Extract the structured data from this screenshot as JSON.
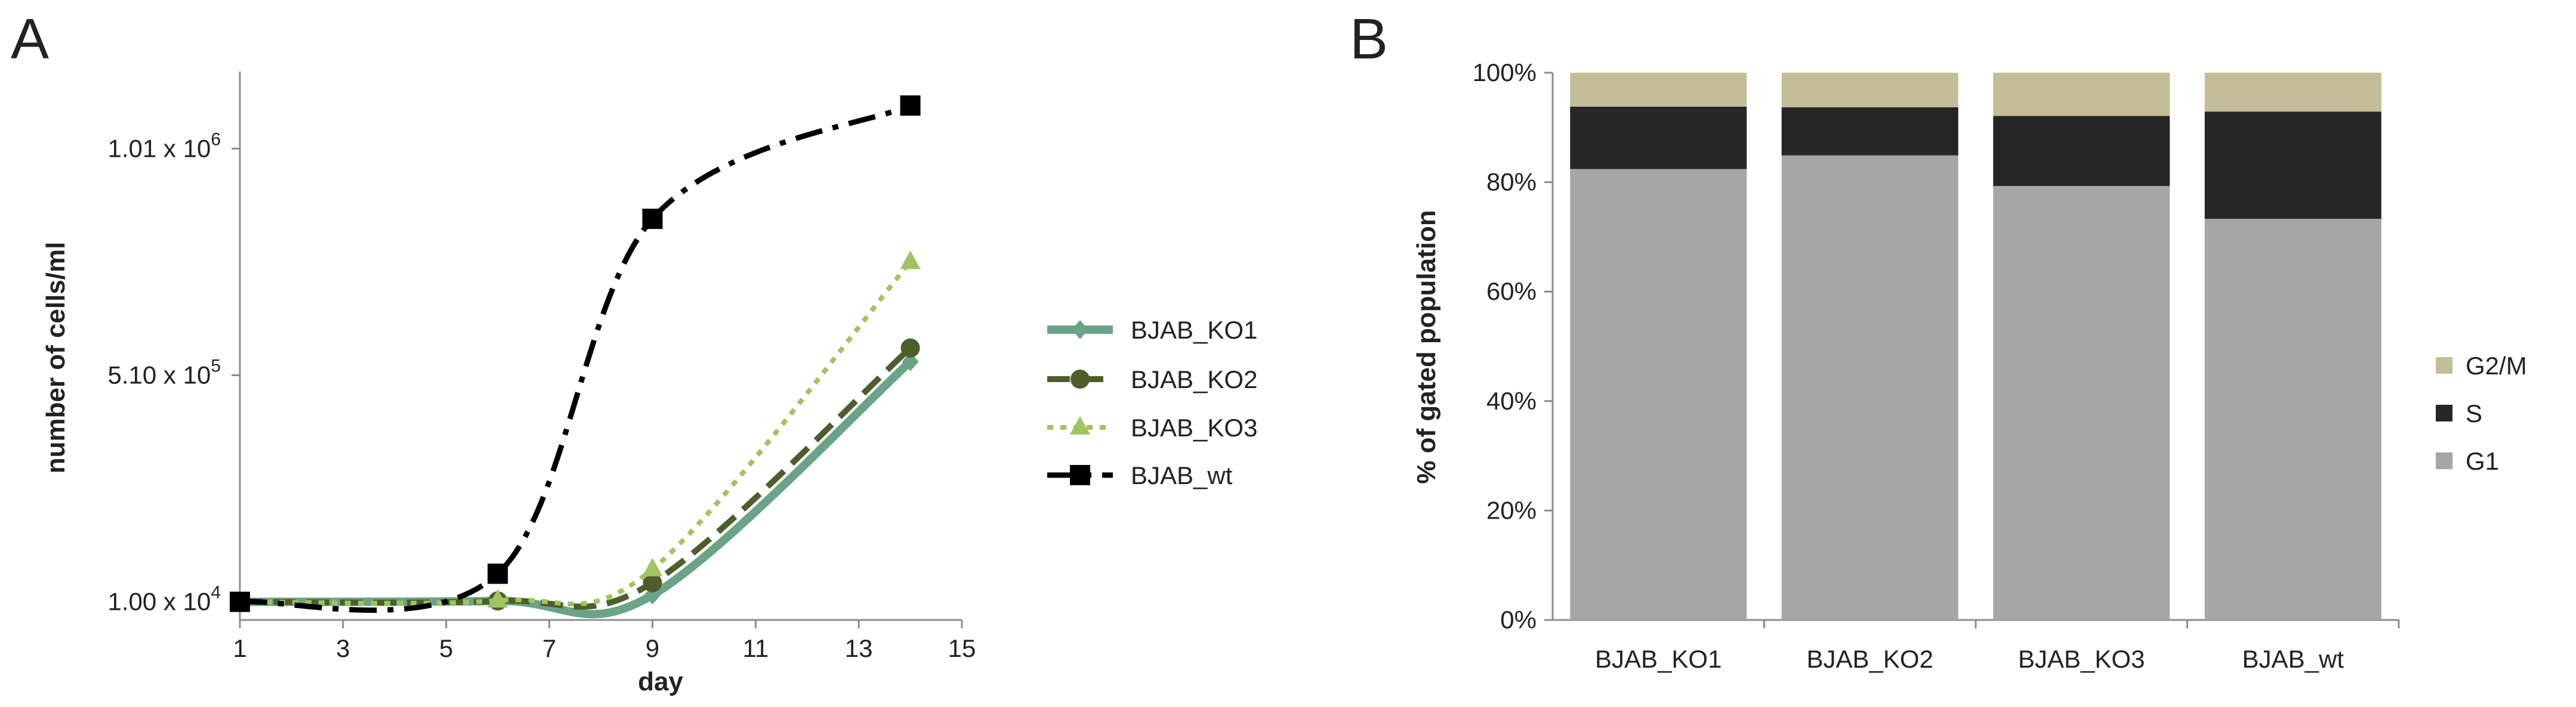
{
  "chart_data": [
    {
      "panel": "A",
      "type": "line",
      "xlabel": "day",
      "ylabel": "number of cells/ml",
      "xlim": [
        1,
        15
      ],
      "ylim": [
        -30000,
        1180000
      ],
      "x_ticks": [
        "1",
        "3",
        "5",
        "7",
        "9",
        "11",
        "13",
        "15"
      ],
      "y_ticks": [
        {
          "value": 10000,
          "label": "1.00 x 10"
        },
        {
          "value": 510000,
          "label": "5.10 x 10"
        },
        {
          "value": 1010000,
          "label": "1.01 x 10"
        }
      ],
      "y_tick_exponents": [
        "4",
        "5",
        "6"
      ],
      "series": [
        {
          "name": "BJAB_KO1",
          "color": "#6aa487",
          "marker": "diamond",
          "x": [
            1,
            6,
            9,
            14
          ],
          "y": [
            10000,
            12000,
            25000,
            540000
          ]
        },
        {
          "name": "BJAB_KO2",
          "color": "#4d5e2c",
          "marker": "circle",
          "x": [
            1,
            6,
            9,
            14
          ],
          "y": [
            10000,
            12000,
            52000,
            570000
          ]
        },
        {
          "name": "BJAB_KO3",
          "color": "#9fc461",
          "marker": "triangle",
          "x": [
            1,
            6,
            9,
            14
          ],
          "y": [
            10000,
            13000,
            82000,
            760000
          ]
        },
        {
          "name": "BJAB_wt",
          "color": "#000000",
          "marker": "square",
          "x": [
            1,
            6,
            9,
            14
          ],
          "y": [
            10000,
            72000,
            855000,
            1105000
          ]
        }
      ]
    },
    {
      "panel": "B",
      "type": "bar",
      "stacked": true,
      "ylabel": "% of gated population",
      "ylim": [
        0,
        100
      ],
      "y_ticks": [
        "0%",
        "20%",
        "40%",
        "60%",
        "80%",
        "100%"
      ],
      "categories": [
        "BJAB_KO1",
        "BJAB_KO2",
        "BJAB_KO3",
        "BJAB_wt"
      ],
      "series": [
        {
          "name": "G1",
          "color": "#a6a6a6",
          "values": [
            82.4,
            84.9,
            79.3,
            73.3
          ]
        },
        {
          "name": "S",
          "color": "#262626",
          "values": [
            11.4,
            8.8,
            12.8,
            19.6
          ]
        },
        {
          "name": "G2/M",
          "color": "#c4be98",
          "values": [
            6.2,
            6.3,
            7.9,
            7.1
          ]
        }
      ],
      "legend_order": [
        "G2/M",
        "S",
        "G1"
      ]
    }
  ]
}
